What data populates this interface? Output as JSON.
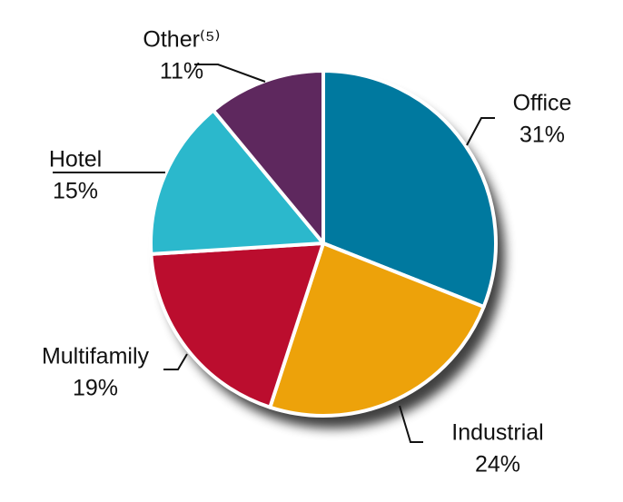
{
  "chart_data": {
    "type": "pie",
    "categories": [
      "Office",
      "Industrial",
      "Multifamily",
      "Hotel",
      "Other⁽⁵⁾"
    ],
    "values": [
      31,
      24,
      19,
      15,
      11
    ],
    "value_labels": [
      "31%",
      "24%",
      "19%",
      "15%",
      "11%"
    ],
    "colors": [
      "#00799f",
      "#eda20a",
      "#bb0d2e",
      "#2bb8cc",
      "#5e285e"
    ]
  }
}
